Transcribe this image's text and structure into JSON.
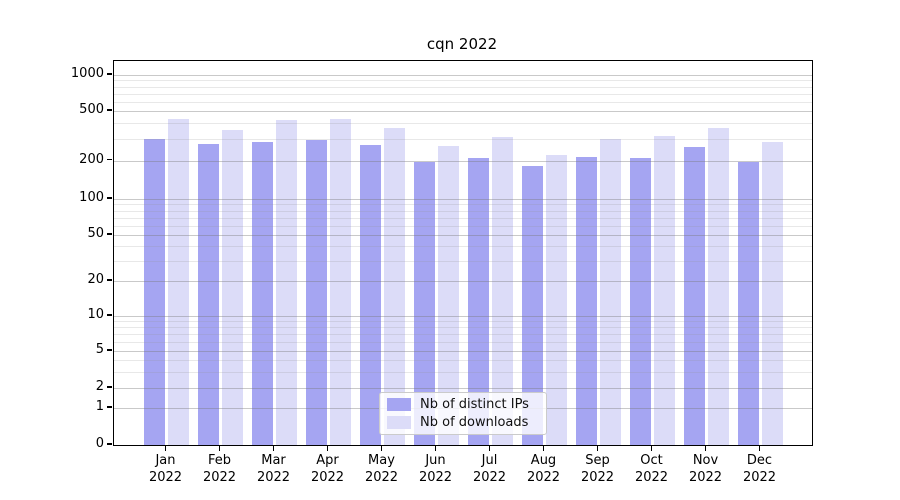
{
  "figure": {
    "title": "cqn 2022"
  },
  "chart_data": {
    "type": "bar",
    "title": "cqn 2022",
    "yscale": "symlog",
    "grid": true,
    "legend_position": "lower center",
    "ylim": [
      0,
      1200
    ],
    "yticks": [
      0,
      1,
      2,
      5,
      10,
      20,
      50,
      100,
      200,
      500,
      1000
    ],
    "categories": [
      "Jan 2022",
      "Feb 2022",
      "Mar 2022",
      "Apr 2022",
      "May 2022",
      "Jun 2022",
      "Jul 2022",
      "Aug 2022",
      "Sep 2022",
      "Oct 2022",
      "Nov 2022",
      "Dec 2022"
    ],
    "series": [
      {
        "name": "Nb of distinct IPs",
        "color": "#a5a5f2",
        "values": [
          300,
          270,
          280,
          290,
          265,
          195,
          210,
          180,
          215,
          210,
          255,
          195
        ]
      },
      {
        "name": "Nb of downloads",
        "color": "#dcdcf8",
        "values": [
          435,
          355,
          420,
          430,
          365,
          260,
          310,
          220,
          300,
          315,
          365,
          280
        ]
      }
    ]
  }
}
